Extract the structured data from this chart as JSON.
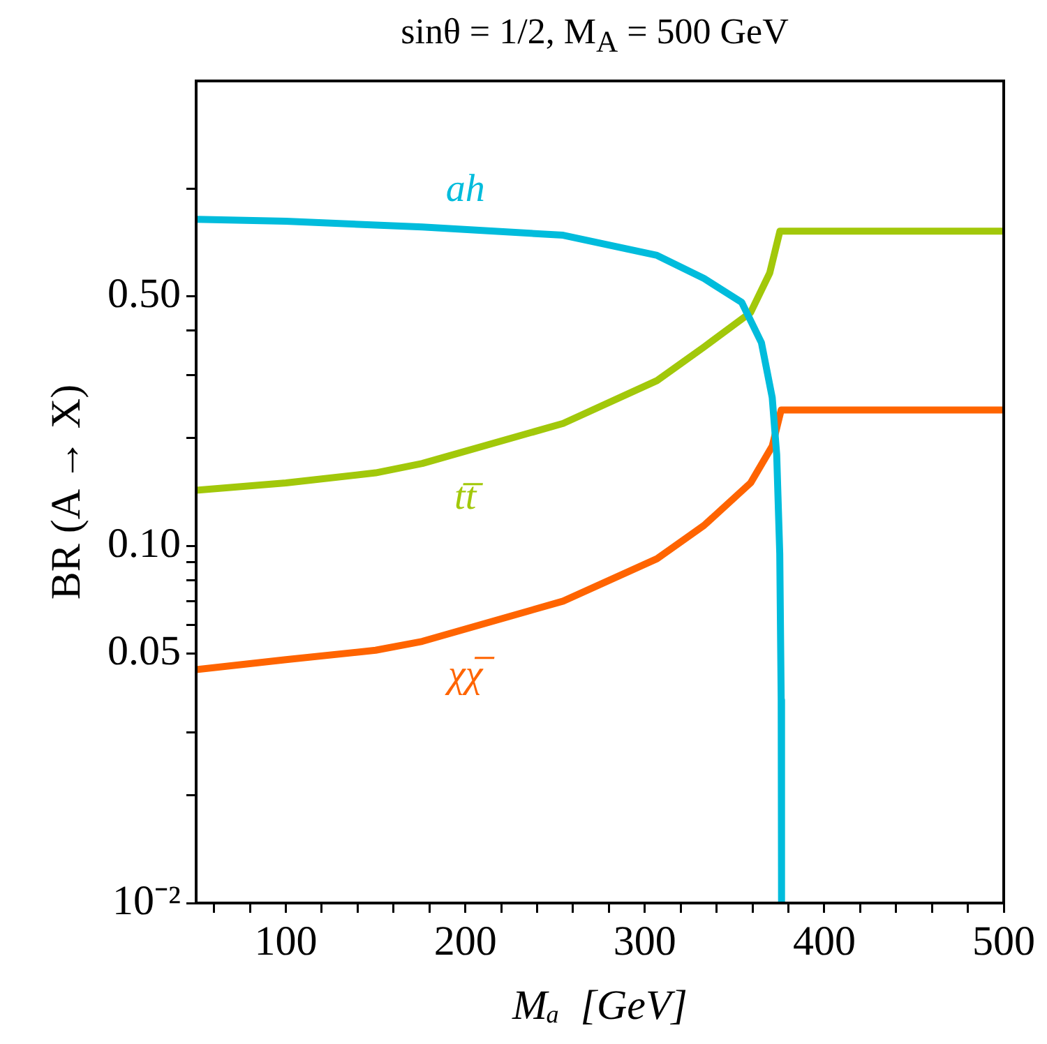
{
  "chart_data": {
    "type": "line",
    "title": "sinθ = 1/2, M$_{A}$ = 500 GeV",
    "xlabel": "Mₐ  [GeV]",
    "ylabel": "BR (A → X)",
    "log": "y",
    "grid": false,
    "legend": false,
    "marker": "none",
    "line_style": "solid",
    "xlim": [
      50,
      500
    ],
    "xticks": [
      {
        "value": 60,
        "label": null
      },
      {
        "value": 80,
        "label": null
      },
      100,
      {
        "value": 120,
        "label": null
      },
      {
        "value": 140,
        "label": null
      },
      {
        "value": 160,
        "label": null
      },
      {
        "value": 180,
        "label": null
      },
      200,
      {
        "value": 220,
        "label": null
      },
      {
        "value": 240,
        "label": null
      },
      {
        "value": 260,
        "label": null
      },
      {
        "value": 280,
        "label": null
      },
      300,
      {
        "value": 320,
        "label": null
      },
      {
        "value": 340,
        "label": null
      },
      {
        "value": 360,
        "label": null
      },
      {
        "value": 380,
        "label": null
      },
      400,
      {
        "value": 420,
        "label": null
      },
      {
        "value": 440,
        "label": null
      },
      {
        "value": 460,
        "label": null
      },
      {
        "value": 480,
        "label": null
      },
      500
    ],
    "ylim": [
      0.01,
      2
    ],
    "yticks": [
      {
        "value": 0.01,
        "label": "10⁻²"
      },
      {
        "value": 0.02,
        "label": null
      },
      {
        "value": 0.03,
        "label": null
      },
      {
        "value": 0.05,
        "label": "0.05"
      },
      {
        "value": 0.06,
        "label": null
      },
      {
        "value": 0.07,
        "label": null
      },
      {
        "value": 0.08,
        "label": null
      },
      {
        "value": 0.09,
        "label": null
      },
      {
        "value": 0.1,
        "label": "0.10"
      },
      {
        "value": 0.2,
        "label": null
      },
      {
        "value": 0.3,
        "label": null
      },
      {
        "value": 0.4,
        "label": null
      },
      {
        "value": 0.5,
        "label": "0.50"
      },
      {
        "value": 1,
        "label": null
      }
    ],
    "series": [
      {
        "name": "ah",
        "color": "#00bcdc",
        "x": [
          50,
          100,
          150,
          176,
          254.5,
          306.8,
          333,
          354,
          365,
          371,
          373.5,
          375.2,
          376,
          376.2
        ],
        "values": [
          0.82,
          0.81,
          0.79,
          0.78,
          0.74,
          0.65,
          0.56,
          0.48,
          0.37,
          0.26,
          0.18,
          0.095,
          0.037,
          0.01
        ]
      },
      {
        "name": "tt̅",
        "color": "#a2c80a",
        "x": [
          50,
          100,
          150,
          176,
          254.5,
          306.8,
          333,
          359,
          369.6,
          375.3,
          500
        ],
        "values": [
          0.143,
          0.15,
          0.16,
          0.17,
          0.22,
          0.29,
          0.36,
          0.45,
          0.58,
          0.76,
          0.76
        ]
      },
      {
        "name": "χχ̅",
        "color": "#ff6400",
        "x": [
          50,
          100,
          150,
          176,
          254.5,
          306.8,
          333,
          359,
          371,
          376,
          500
        ],
        "values": [
          0.045,
          0.048,
          0.051,
          0.054,
          0.07,
          0.092,
          0.114,
          0.15,
          0.19,
          0.24,
          0.24
        ]
      }
    ]
  }
}
